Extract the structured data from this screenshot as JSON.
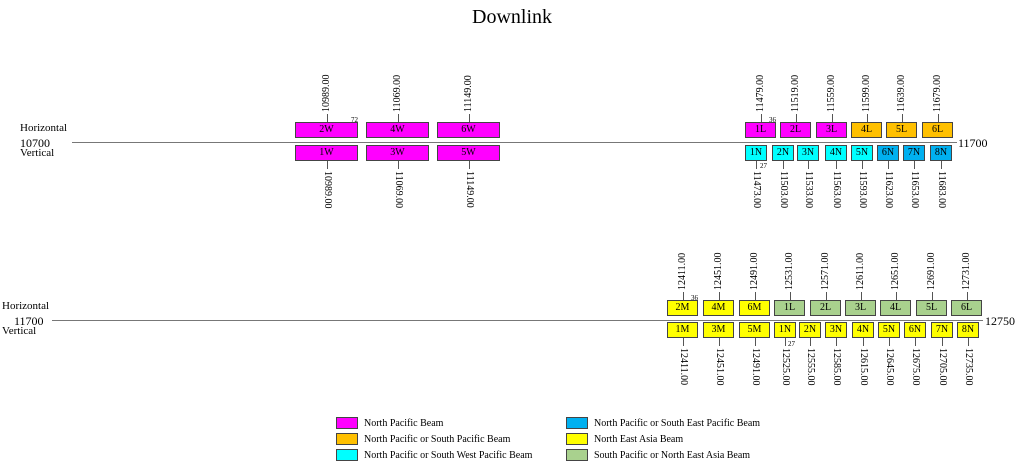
{
  "title": "Downlink",
  "colors": {
    "north_pacific": "#ff00ff",
    "np_south_pacific": "#ffc000",
    "np_south_west_pacific": "#00ffff",
    "np_south_east_pacific": "#00b0f0",
    "north_east_asia": "#ffff00",
    "sp_north_east_asia": "#a9d18e"
  },
  "legend": [
    {
      "label": "North Pacific Beam",
      "color": "#ff00ff"
    },
    {
      "label": "North Pacific or South Pacific Beam",
      "color": "#ffc000"
    },
    {
      "label": "North Pacific or South West Pacific Beam",
      "color": "#00ffff"
    },
    {
      "label": "North Pacific or South East Pacific Beam",
      "color": "#00b0f0"
    },
    {
      "label": "North East Asia Beam",
      "color": "#ffff00"
    },
    {
      "label": "South Pacific or North East Asia Beam",
      "color": "#a9d18e"
    }
  ],
  "bands": [
    {
      "start_label": "10700",
      "end_label": "11700",
      "horizontal_label": "Horizontal",
      "vertical_label": "Vertical",
      "horizontal": [
        {
          "label": "2W",
          "freq": "10989.00",
          "color": "#ff00ff",
          "note": "72"
        },
        {
          "label": "4W",
          "freq": "11069.00",
          "color": "#ff00ff"
        },
        {
          "label": "6W",
          "freq": "11149.00",
          "color": "#ff00ff"
        },
        {
          "label": "1L",
          "freq": "11479.00",
          "color": "#ff00ff",
          "note": "36"
        },
        {
          "label": "2L",
          "freq": "11519.00",
          "color": "#ff00ff"
        },
        {
          "label": "3L",
          "freq": "11559.00",
          "color": "#ff00ff"
        },
        {
          "label": "4L",
          "freq": "11599.00",
          "color": "#ffc000"
        },
        {
          "label": "5L",
          "freq": "11639.00",
          "color": "#ffc000"
        },
        {
          "label": "6L",
          "freq": "11679.00",
          "color": "#ffc000"
        }
      ],
      "vertical": [
        {
          "label": "1W",
          "freq": "10989.00",
          "color": "#ff00ff"
        },
        {
          "label": "3W",
          "freq": "11069.00",
          "color": "#ff00ff"
        },
        {
          "label": "5W",
          "freq": "11149.00",
          "color": "#ff00ff"
        },
        {
          "label": "1N",
          "freq": "11473.00",
          "color": "#00ffff",
          "note": "27"
        },
        {
          "label": "2N",
          "freq": "11503.00",
          "color": "#00ffff"
        },
        {
          "label": "3N",
          "freq": "11533.00",
          "color": "#00ffff"
        },
        {
          "label": "4N",
          "freq": "11563.00",
          "color": "#00ffff"
        },
        {
          "label": "5N",
          "freq": "11593.00",
          "color": "#00ffff"
        },
        {
          "label": "6N",
          "freq": "11623.00",
          "color": "#00b0f0"
        },
        {
          "label": "7N",
          "freq": "11653.00",
          "color": "#00b0f0"
        },
        {
          "label": "8N",
          "freq": "11683.00",
          "color": "#00b0f0"
        }
      ]
    },
    {
      "start_label": "11700",
      "end_label": "12750",
      "horizontal_label": "Horizontal",
      "vertical_label": "Vertical",
      "horizontal": [
        {
          "label": "2M",
          "freq": "12411.00",
          "color": "#ffff00",
          "note": "36"
        },
        {
          "label": "4M",
          "freq": "12451.00",
          "color": "#ffff00"
        },
        {
          "label": "6M",
          "freq": "12491.00",
          "color": "#ffff00"
        },
        {
          "label": "1L",
          "freq": "12531.00",
          "color": "#a9d18e"
        },
        {
          "label": "2L",
          "freq": "12571.00",
          "color": "#a9d18e"
        },
        {
          "label": "3L",
          "freq": "12611.00",
          "color": "#a9d18e"
        },
        {
          "label": "4L",
          "freq": "12651.00",
          "color": "#a9d18e"
        },
        {
          "label": "5L",
          "freq": "12691.00",
          "color": "#a9d18e"
        },
        {
          "label": "6L",
          "freq": "12731.00",
          "color": "#a9d18e"
        }
      ],
      "vertical": [
        {
          "label": "1M",
          "freq": "12411.00",
          "color": "#ffff00"
        },
        {
          "label": "3M",
          "freq": "12451.00",
          "color": "#ffff00"
        },
        {
          "label": "5M",
          "freq": "12491.00",
          "color": "#ffff00"
        },
        {
          "label": "1N",
          "freq": "12525.00",
          "color": "#ffff00",
          "note": "27"
        },
        {
          "label": "2N",
          "freq": "12555.00",
          "color": "#ffff00"
        },
        {
          "label": "3N",
          "freq": "12585.00",
          "color": "#ffff00"
        },
        {
          "label": "4N",
          "freq": "12615.00",
          "color": "#ffff00"
        },
        {
          "label": "5N",
          "freq": "12645.00",
          "color": "#ffff00"
        },
        {
          "label": "6N",
          "freq": "12675.00",
          "color": "#ffff00"
        },
        {
          "label": "7N",
          "freq": "12705.00",
          "color": "#ffff00"
        },
        {
          "label": "8N",
          "freq": "12735.00",
          "color": "#ffff00"
        }
      ]
    }
  ]
}
